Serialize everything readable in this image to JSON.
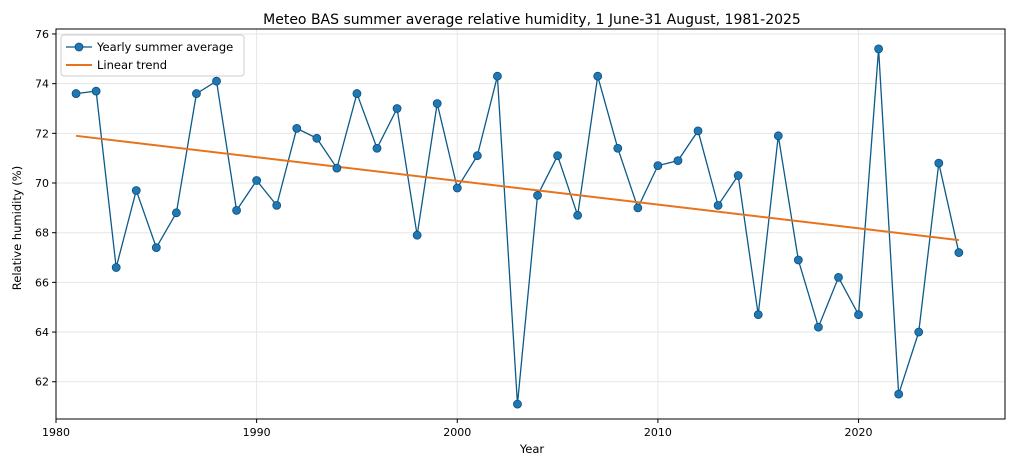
{
  "chart_data": {
    "type": "line",
    "title": "Meteo BAS summer average relative humidity, 1 June-31 August, 1981-2025",
    "xlabel": "Year",
    "ylabel": "Relative humidity (%)",
    "xlim": [
      1980,
      2025
    ],
    "ylim": [
      60.5,
      76.2
    ],
    "xticks": [
      1980,
      1990,
      2000,
      2010,
      2020
    ],
    "yticks": [
      62,
      64,
      66,
      68,
      70,
      72,
      74,
      76
    ],
    "grid": true,
    "legend_position": "top-left",
    "series": [
      {
        "name": "Yearly summer average",
        "kind": "line-marker",
        "color": "#1f77b4",
        "line_color": "#0b5a8a",
        "x": [
          1981,
          1982,
          1983,
          1984,
          1985,
          1986,
          1987,
          1988,
          1989,
          1990,
          1991,
          1992,
          1993,
          1994,
          1995,
          1996,
          1997,
          1998,
          1999,
          2000,
          2001,
          2002,
          2003,
          2004,
          2005,
          2006,
          2007,
          2008,
          2009,
          2010,
          2011,
          2012,
          2013,
          2014,
          2015,
          2016,
          2017,
          2018,
          2019,
          2020,
          2021,
          2022,
          2023,
          2024,
          2025
        ],
        "y": [
          73.6,
          73.7,
          66.6,
          69.7,
          67.4,
          68.8,
          73.6,
          74.1,
          68.9,
          70.1,
          69.1,
          72.2,
          71.8,
          70.6,
          73.6,
          71.4,
          73.0,
          67.9,
          73.2,
          69.8,
          71.1,
          74.3,
          61.1,
          69.5,
          71.1,
          68.7,
          74.3,
          71.4,
          69.0,
          70.7,
          70.9,
          72.1,
          69.1,
          70.3,
          64.7,
          71.9,
          66.9,
          64.2,
          66.2,
          64.7,
          75.4,
          61.5,
          64.0,
          70.8,
          67.2
        ]
      },
      {
        "name": "Linear trend",
        "kind": "line",
        "color": "#e8731c",
        "x": [
          1981,
          2025
        ],
        "y": [
          71.9,
          67.7
        ]
      }
    ]
  }
}
